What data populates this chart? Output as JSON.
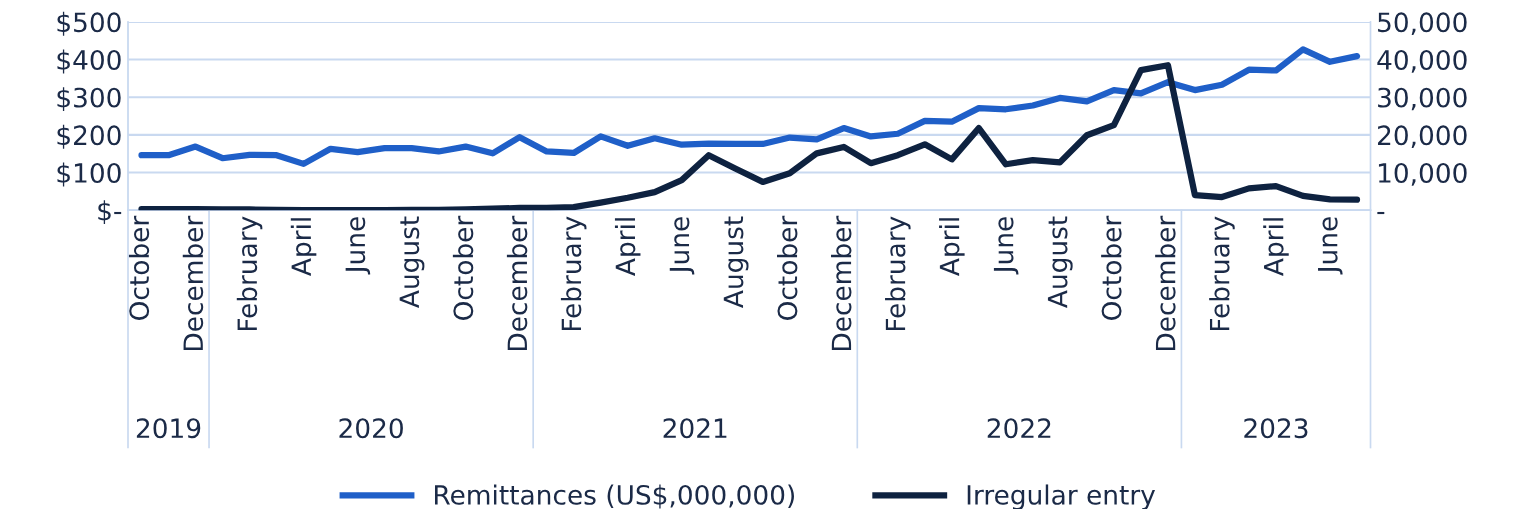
{
  "chart_data": {
    "type": "line",
    "x": [
      "2019-10",
      "2019-11",
      "2019-12",
      "2020-01",
      "2020-02",
      "2020-03",
      "2020-04",
      "2020-05",
      "2020-06",
      "2020-07",
      "2020-08",
      "2020-09",
      "2020-10",
      "2020-11",
      "2020-12",
      "2021-01",
      "2021-02",
      "2021-03",
      "2021-04",
      "2021-05",
      "2021-06",
      "2021-07",
      "2021-08",
      "2021-09",
      "2021-10",
      "2021-11",
      "2021-12",
      "2022-01",
      "2022-02",
      "2022-03",
      "2022-04",
      "2022-05",
      "2022-06",
      "2022-07",
      "2022-08",
      "2022-09",
      "2022-10",
      "2022-11",
      "2022-12",
      "2023-01",
      "2023-02",
      "2023-03",
      "2023-04",
      "2023-05",
      "2023-06",
      "2023-07"
    ],
    "xlim": [
      "2019-09-16",
      "2023-07-16"
    ],
    "xticks": [
      {
        "value": "2019-10",
        "label": "October"
      },
      {
        "value": "2019-12",
        "label": "December"
      },
      {
        "value": "2020-02",
        "label": "February"
      },
      {
        "value": "2020-04",
        "label": "April"
      },
      {
        "value": "2020-06",
        "label": "June"
      },
      {
        "value": "2020-08",
        "label": "August"
      },
      {
        "value": "2020-10",
        "label": "October"
      },
      {
        "value": "2020-12",
        "label": "December"
      },
      {
        "value": "2021-02",
        "label": "February"
      },
      {
        "value": "2021-04",
        "label": "April"
      },
      {
        "value": "2021-06",
        "label": "June"
      },
      {
        "value": "2021-08",
        "label": "August"
      },
      {
        "value": "2021-10",
        "label": "October"
      },
      {
        "value": "2021-12",
        "label": "December"
      },
      {
        "value": "2022-02",
        "label": "February"
      },
      {
        "value": "2022-04",
        "label": "April"
      },
      {
        "value": "2022-06",
        "label": "June"
      },
      {
        "value": "2022-08",
        "label": "August"
      },
      {
        "value": "2022-10",
        "label": "October"
      },
      {
        "value": "2022-12",
        "label": "December"
      },
      {
        "value": "2023-02",
        "label": "February"
      },
      {
        "value": "2023-04",
        "label": "April"
      },
      {
        "value": "2023-06",
        "label": "June"
      }
    ],
    "series": [
      {
        "name": "Remittances (US$,000,000)",
        "color": "#1f5fc8",
        "values": [
          146,
          146,
          169,
          138,
          147,
          146,
          123,
          163,
          154,
          165,
          165,
          156,
          169,
          151,
          194,
          156,
          152,
          196,
          171,
          191,
          174,
          177,
          176,
          176,
          193,
          188,
          218,
          196,
          203,
          237,
          235,
          271,
          268,
          278,
          298,
          289,
          319,
          310,
          340,
          319,
          333,
          373,
          371,
          427,
          394,
          409
        ]
      },
      {
        "name": "Irregular entry",
        "color": "#0e2240",
        "axis": "y2",
        "values": [
          300,
          300,
          300,
          200,
          200,
          100,
          0,
          0,
          0,
          0,
          100,
          100,
          200,
          400,
          600,
          600,
          800,
          2000,
          3300,
          4800,
          8000,
          14600,
          11000,
          7500,
          9800,
          15100,
          16800,
          12500,
          14600,
          17500,
          13500,
          21800,
          12200,
          13300,
          12700,
          19900,
          22600,
          37200,
          38500,
          4000,
          3500,
          5800,
          6400,
          3800,
          2900,
          2800
        ]
      }
    ],
    "ylim": [
      0,
      500
    ],
    "yticks": [
      {
        "value": 0,
        "label": "$-"
      },
      {
        "value": 100,
        "label": "$100"
      },
      {
        "value": 200,
        "label": "$200"
      },
      {
        "value": 300,
        "label": "$300"
      },
      {
        "value": 400,
        "label": "$400"
      },
      {
        "value": 500,
        "label": "$500"
      }
    ],
    "y2lim": [
      0,
      50000
    ],
    "y2ticks": [
      {
        "value": 0,
        "label": "-"
      },
      {
        "value": 10000,
        "label": "10,000"
      },
      {
        "value": 20000,
        "label": "20,000"
      },
      {
        "value": 30000,
        "label": "30,000"
      },
      {
        "value": 40000,
        "label": "40,000"
      },
      {
        "value": 50000,
        "label": "50,000"
      }
    ],
    "annotations": [
      "2019",
      "2020",
      "2021",
      "2022",
      "2023"
    ],
    "grid": "y",
    "legend": "bottom",
    "marker": "none",
    "line_style": "solid"
  }
}
